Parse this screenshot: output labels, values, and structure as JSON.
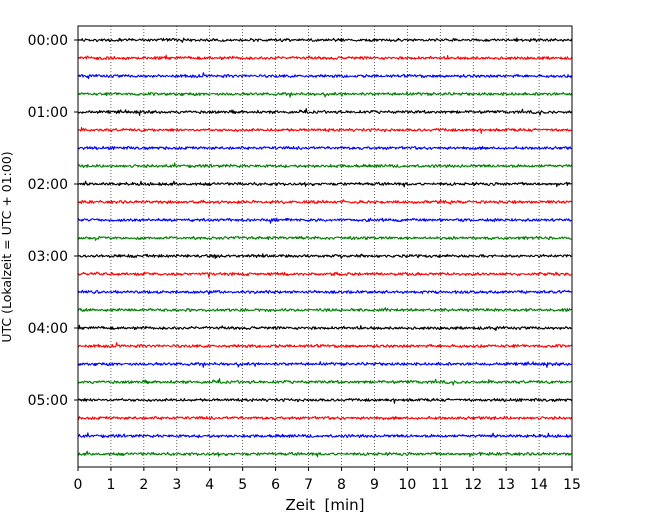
{
  "chart_data": {
    "type": "line",
    "chart_kind": "helicorder",
    "xlabel": "Zeit  [min]",
    "ylabel": "UTC (Lokalzeit = UTC + 01:00)",
    "xlim": [
      0,
      15
    ],
    "x_ticks": [
      "0",
      "1",
      "2",
      "3",
      "4",
      "5",
      "6",
      "7",
      "8",
      "9",
      "10",
      "11",
      "12",
      "13",
      "14",
      "15"
    ],
    "y_tick_labels": [
      "00:00",
      "01:00",
      "02:00",
      "03:00",
      "04:00",
      "05:00"
    ],
    "grid": "vertical dotted lines at each minute",
    "legend": "none",
    "trace_colors": [
      "#000000",
      "#ff0000",
      "#0000ff",
      "#008000"
    ],
    "traces": [
      {
        "start": "00:00",
        "color": "#000000"
      },
      {
        "start": "00:15",
        "color": "#ff0000"
      },
      {
        "start": "00:30",
        "color": "#0000ff"
      },
      {
        "start": "00:45",
        "color": "#008000"
      },
      {
        "start": "01:00",
        "color": "#000000"
      },
      {
        "start": "01:15",
        "color": "#ff0000"
      },
      {
        "start": "01:30",
        "color": "#0000ff"
      },
      {
        "start": "01:45",
        "color": "#008000"
      },
      {
        "start": "02:00",
        "color": "#000000"
      },
      {
        "start": "02:15",
        "color": "#ff0000"
      },
      {
        "start": "02:30",
        "color": "#0000ff"
      },
      {
        "start": "02:45",
        "color": "#008000"
      },
      {
        "start": "03:00",
        "color": "#000000"
      },
      {
        "start": "03:15",
        "color": "#ff0000"
      },
      {
        "start": "03:30",
        "color": "#0000ff"
      },
      {
        "start": "03:45",
        "color": "#008000"
      },
      {
        "start": "04:00",
        "color": "#000000"
      },
      {
        "start": "04:15",
        "color": "#ff0000"
      },
      {
        "start": "04:30",
        "color": "#0000ff"
      },
      {
        "start": "04:45",
        "color": "#008000"
      },
      {
        "start": "05:00",
        "color": "#000000"
      },
      {
        "start": "05:15",
        "color": "#ff0000"
      },
      {
        "start": "05:30",
        "color": "#0000ff"
      },
      {
        "start": "05:45",
        "color": "#008000"
      }
    ]
  }
}
